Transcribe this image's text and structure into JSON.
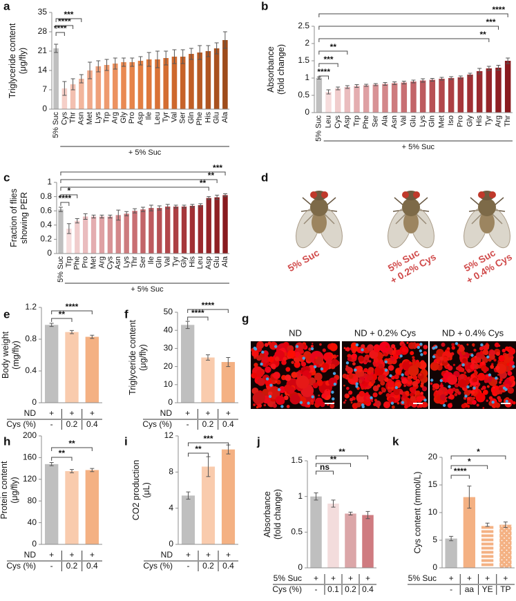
{
  "chart_data": [
    {
      "type": "bar",
      "panel": "a",
      "ylabel": [
        "Triglyceride content",
        "(μg/fly)"
      ],
      "categories": [
        "5% Suc",
        "Cys",
        "Thr",
        "Asn",
        "Met",
        "Lys",
        "Trp",
        "Arg",
        "Gly",
        "Pro",
        "Asp",
        "Ile",
        "Leu",
        "Tyr",
        "Val",
        "Ser",
        "Gln",
        "Phe",
        "His",
        "Glu",
        "Ala"
      ],
      "values": [
        22,
        7.5,
        9,
        11,
        14,
        15.5,
        16,
        16.5,
        17,
        17,
        17.5,
        18,
        18,
        18.5,
        19,
        19,
        20,
        20.5,
        21,
        22,
        25
      ],
      "errors": [
        1.5,
        2.5,
        2,
        1.5,
        3,
        2,
        2,
        2,
        1.5,
        1.5,
        1.5,
        2.5,
        3,
        2.5,
        2.5,
        2.5,
        2,
        2.5,
        2,
        2,
        3
      ],
      "colors": [
        "#bfbfbf",
        "#f5cfc8",
        "#f3c0b0",
        "#f2b59c",
        "#f0a98a",
        "#efa07a",
        "#ee9a6e",
        "#ec9260",
        "#e98a52",
        "#e6844a",
        "#e27e42",
        "#de783c",
        "#d97236",
        "#d46d31",
        "#ce682d",
        "#c76329",
        "#c05e26",
        "#b85a23",
        "#b05520",
        "#a8511e",
        "#9e4c1b"
      ],
      "ylim": [
        0,
        35
      ],
      "yticks": [
        0,
        7,
        14,
        21,
        28,
        35
      ],
      "group_label": "+ 5% Suc",
      "significance": [
        {
          "label": "****",
          "to": "Cys"
        },
        {
          "label": "****",
          "to": "Thr"
        },
        {
          "label": "***",
          "to": "Asn"
        }
      ]
    },
    {
      "type": "bar",
      "panel": "b",
      "ylabel": [
        "Absorbance",
        "(fold change)"
      ],
      "categories": [
        "5% Suc",
        "Leu",
        "Cys",
        "Asp",
        "Trp",
        "Phe",
        "Ser",
        "Ala",
        "Asn",
        "Val",
        "Glu",
        "Lys",
        "Gln",
        "Met",
        "Iso",
        "Pro",
        "Gly",
        "His",
        "Tyr",
        "Arg",
        "Thr"
      ],
      "values": [
        1.0,
        0.6,
        0.7,
        0.74,
        0.77,
        0.79,
        0.81,
        0.83,
        0.85,
        0.87,
        0.9,
        0.93,
        0.95,
        0.98,
        1.0,
        1.02,
        1.1,
        1.2,
        1.28,
        1.3,
        1.5
      ],
      "errors": [
        0.03,
        0.06,
        0.04,
        0.04,
        0.04,
        0.03,
        0.03,
        0.04,
        0.04,
        0.04,
        0.04,
        0.05,
        0.04,
        0.04,
        0.04,
        0.04,
        0.04,
        0.08,
        0.06,
        0.07,
        0.08
      ],
      "colors": [
        "#bfbfbf",
        "#f6dcdc",
        "#f0cccc",
        "#eabcbe",
        "#e4adb0",
        "#dea0a3",
        "#d89396",
        "#d3878a",
        "#cd7b7e",
        "#c86f73",
        "#c26468",
        "#bd5a5e",
        "#b75054",
        "#b2474b",
        "#ac3f43",
        "#a6373b",
        "#a03034",
        "#9a2a2e",
        "#942428",
        "#8e1f23",
        "#881a1e"
      ],
      "ylim": [
        0,
        2.5
      ],
      "yticks": [
        0,
        0.5,
        1,
        1.5,
        2,
        2.5
      ],
      "group_label": "+ 5% Suc",
      "significance": [
        {
          "label": "****",
          "to": "Leu"
        },
        {
          "label": "***",
          "to": "Cys"
        },
        {
          "label": "**",
          "to": "Asp"
        },
        {
          "label": "**",
          "to": "Tyr"
        },
        {
          "label": "***",
          "to": "Arg"
        },
        {
          "label": "****",
          "to": "Thr"
        }
      ]
    },
    {
      "type": "bar",
      "panel": "c",
      "ylabel": [
        "Fraction of flies",
        "showing PER"
      ],
      "categories": [
        "5% Suc",
        "Trp",
        "Phe",
        "Pro",
        "Met",
        "Arg",
        "Cys",
        "Asn",
        "Lys",
        "Thr",
        "Ser",
        "Ile",
        "Gln",
        "Val",
        "Tyr",
        "Gly",
        "His",
        "Leu",
        "Asp",
        "Glu",
        "Ala"
      ],
      "values": [
        0.62,
        0.35,
        0.46,
        0.52,
        0.52,
        0.52,
        0.52,
        0.54,
        0.56,
        0.6,
        0.62,
        0.64,
        0.64,
        0.66,
        0.66,
        0.66,
        0.67,
        0.68,
        0.78,
        0.79,
        0.82
      ],
      "errors": [
        0.03,
        0.07,
        0.03,
        0.04,
        0.02,
        0.02,
        0.02,
        0.07,
        0.03,
        0.03,
        0.03,
        0.04,
        0.03,
        0.03,
        0.02,
        0.02,
        0.02,
        0.02,
        0.02,
        0.03,
        0.02
      ],
      "colors": [
        "#bfbfbf",
        "#f6dcdc",
        "#f0cccc",
        "#eabcbe",
        "#e4adb0",
        "#dea0a3",
        "#d89396",
        "#d3878a",
        "#cd7b7e",
        "#c86f73",
        "#c26468",
        "#bd5a5e",
        "#b75054",
        "#b2474b",
        "#ac3f43",
        "#a6373b",
        "#a03034",
        "#9a2a2e",
        "#942428",
        "#8e1f23",
        "#881a1e"
      ],
      "ylim": [
        0,
        1
      ],
      "yticks": [
        0,
        0.2,
        0.4,
        0.6,
        0.8,
        1
      ],
      "group_label": "+ 5% Suc",
      "significance": [
        {
          "label": "****",
          "to": "Trp"
        },
        {
          "label": "*",
          "to": "Phe"
        },
        {
          "label": "**",
          "to": "Asp"
        },
        {
          "label": "**",
          "to": "Glu"
        },
        {
          "label": "***",
          "to": "Ala"
        }
      ]
    },
    {
      "type": "photo",
      "panel": "d",
      "captions": [
        [
          "5% Suc"
        ],
        [
          "5% Suc",
          "+ 0.2% Cys"
        ],
        [
          "5% Suc",
          "+ 0.4% Cys"
        ]
      ]
    },
    {
      "type": "bar",
      "panel": "e",
      "ylabel": [
        "Body weight",
        "(mg/fly)"
      ],
      "values": [
        0.98,
        0.89,
        0.83
      ],
      "errors": [
        0.02,
        0.02,
        0.02
      ],
      "colors": [
        "#bfbfbf",
        "#f9cbad",
        "#f4b183"
      ],
      "ylim": [
        0,
        1.2
      ],
      "yticks": [
        0,
        0.4,
        0.8,
        1.2
      ],
      "conditions": [
        {
          "name": "ND",
          "values": [
            "+",
            "+",
            "+"
          ]
        },
        {
          "name": "Cys (%)",
          "values": [
            "-",
            "0.2",
            "0.4"
          ]
        }
      ],
      "significance": [
        {
          "label": "**",
          "to": "0.2"
        },
        {
          "label": "****",
          "to": "0.4"
        }
      ]
    },
    {
      "type": "bar",
      "panel": "f",
      "ylabel": [
        "Triglyceride content",
        "(μg/fly)"
      ],
      "values": [
        43,
        25,
        22.5
      ],
      "errors": [
        2,
        1.5,
        2.5
      ],
      "colors": [
        "#bfbfbf",
        "#f9cbad",
        "#f4b183"
      ],
      "ylim": [
        0,
        50
      ],
      "yticks": [
        0,
        10,
        20,
        30,
        40,
        50
      ],
      "conditions": [
        {
          "name": "ND",
          "values": [
            "+",
            "+",
            "+"
          ]
        },
        {
          "name": "Cys (%)",
          "values": [
            "-",
            "0.2",
            "0.4"
          ]
        }
      ],
      "significance": [
        {
          "label": "****",
          "to": "0.2"
        },
        {
          "label": "****",
          "to": "0.4"
        }
      ]
    },
    {
      "type": "micrograph",
      "panel": "g",
      "captions": [
        "ND",
        "ND + 0.2% Cys",
        "ND + 0.4% Cys"
      ]
    },
    {
      "type": "bar",
      "panel": "h",
      "ylabel": [
        "Protein content",
        "(μg/fly)"
      ],
      "values": [
        148,
        135,
        137
      ],
      "errors": [
        3,
        3,
        3
      ],
      "colors": [
        "#bfbfbf",
        "#f9cbad",
        "#f4b183"
      ],
      "ylim": [
        0,
        200
      ],
      "yticks": [
        0,
        40,
        80,
        120,
        160,
        200
      ],
      "conditions": [
        {
          "name": "ND",
          "values": [
            "+",
            "+",
            "+"
          ]
        },
        {
          "name": "Cys (%)",
          "values": [
            "-",
            "0.2",
            "0.4"
          ]
        }
      ],
      "significance": [
        {
          "label": "**",
          "to": "0.2"
        },
        {
          "label": "**",
          "to": "0.4"
        }
      ]
    },
    {
      "type": "bar",
      "panel": "i",
      "ylabel": [
        "CO2 production",
        "(μL)"
      ],
      "values": [
        5.4,
        8.6,
        10.5
      ],
      "errors": [
        0.4,
        1.1,
        0.5
      ],
      "colors": [
        "#bfbfbf",
        "#f9cbad",
        "#f4b183"
      ],
      "ylim": [
        0,
        12
      ],
      "yticks": [
        0,
        4,
        8,
        12
      ],
      "conditions": [
        {
          "name": "ND",
          "values": [
            "+",
            "+",
            "+"
          ]
        },
        {
          "name": "Cys (%)",
          "values": [
            "-",
            "0.2",
            "0.4"
          ]
        }
      ],
      "significance": [
        {
          "label": "**",
          "to": "0.2"
        },
        {
          "label": "***",
          "to": "0.4"
        }
      ]
    },
    {
      "type": "bar",
      "panel": "j",
      "ylabel": [
        "Absorbance",
        "(fold change)"
      ],
      "values": [
        1.0,
        0.9,
        0.76,
        0.74
      ],
      "errors": [
        0.05,
        0.05,
        0.02,
        0.05
      ],
      "colors": [
        "#bfbfbf",
        "#f3dcdc",
        "#dba6a8",
        "#cf7b80"
      ],
      "ylim": [
        0,
        1.5
      ],
      "yticks": [
        0,
        0.5,
        1,
        1.5
      ],
      "conditions": [
        {
          "name": "5% Suc",
          "values": [
            "+",
            "+",
            "+",
            "+"
          ]
        },
        {
          "name": "Cys (%)",
          "values": [
            "-",
            "0.1",
            "0.2",
            "0.4"
          ]
        }
      ],
      "significance": [
        {
          "label": "ns",
          "to": "0.1"
        },
        {
          "label": "**",
          "to": "0.2"
        },
        {
          "label": "**",
          "to": "0.4"
        }
      ]
    },
    {
      "type": "bar",
      "panel": "k",
      "ylabel": [
        "Cys content (mmol/L)"
      ],
      "values": [
        5.3,
        12.8,
        7.8,
        7.8
      ],
      "errors": [
        0.4,
        2,
        0.3,
        0.5
      ],
      "colors": [
        "#bfbfbf",
        "#f4b183",
        "#f4b183",
        "#f4b183"
      ],
      "patterns": [
        null,
        null,
        "stripes",
        "dots"
      ],
      "ylim": [
        0,
        20
      ],
      "yticks": [
        0,
        5,
        10,
        15,
        20
      ],
      "conditions": [
        {
          "name": "5% Suc",
          "values": [
            "+",
            "+",
            "+",
            "+"
          ]
        },
        {
          "name": "",
          "values": [
            "-",
            "aa",
            "YE",
            "TP"
          ]
        }
      ],
      "significance": [
        {
          "label": "****",
          "to": "aa"
        },
        {
          "label": "*",
          "to": "YE"
        },
        {
          "label": "*",
          "to": "TP"
        }
      ]
    }
  ]
}
